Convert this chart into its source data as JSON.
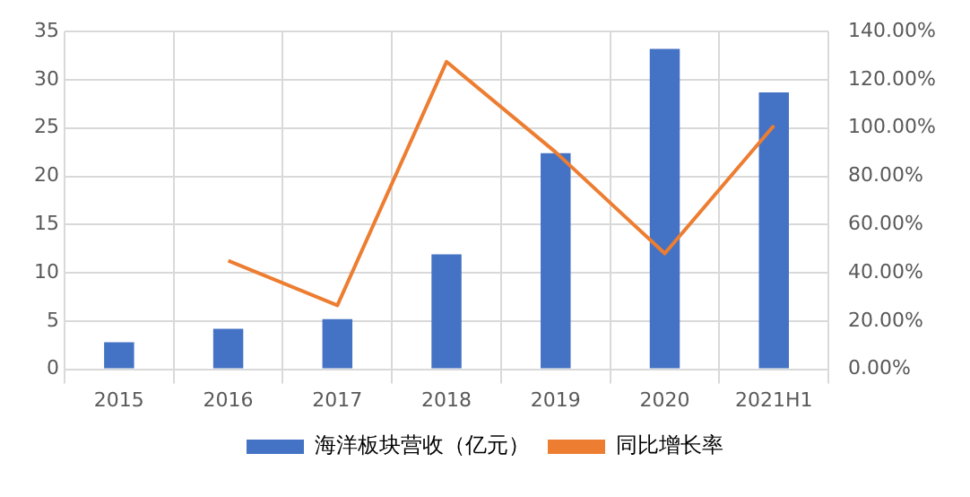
{
  "chart_data": {
    "type": "bar",
    "categories": [
      "2015",
      "2016",
      "2017",
      "2018",
      "2019",
      "2020",
      "2021H1"
    ],
    "series": [
      {
        "name": "海洋板块营收（亿元）",
        "color": "#4472c4",
        "values": [
          2.8,
          4.2,
          5.2,
          11.9,
          22.4,
          33.2,
          28.7
        ]
      },
      {
        "name": "同比增长率",
        "type": "line",
        "axis": "y2",
        "color": "#ed7d31",
        "values": [
          null,
          45,
          26.5,
          127.5,
          90,
          48,
          101
        ]
      }
    ],
    "ylim": [
      0,
      35
    ],
    "yticks": [
      0,
      5,
      10,
      15,
      20,
      25,
      30,
      35
    ],
    "y2lim": [
      0,
      140
    ],
    "y2ticks": [
      {
        "value": 0,
        "label": "0.00%"
      },
      {
        "value": 20,
        "label": "20.00%"
      },
      {
        "value": 40,
        "label": "40.00%"
      },
      {
        "value": 60,
        "label": "60.00%"
      },
      {
        "value": 80,
        "label": "80.00%"
      },
      {
        "value": 100,
        "label": "100.00%"
      },
      {
        "value": 120,
        "label": "120.00%"
      },
      {
        "value": 140,
        "label": "140.00%"
      }
    ],
    "grid": true,
    "legend": "bottom",
    "marker": "none"
  }
}
